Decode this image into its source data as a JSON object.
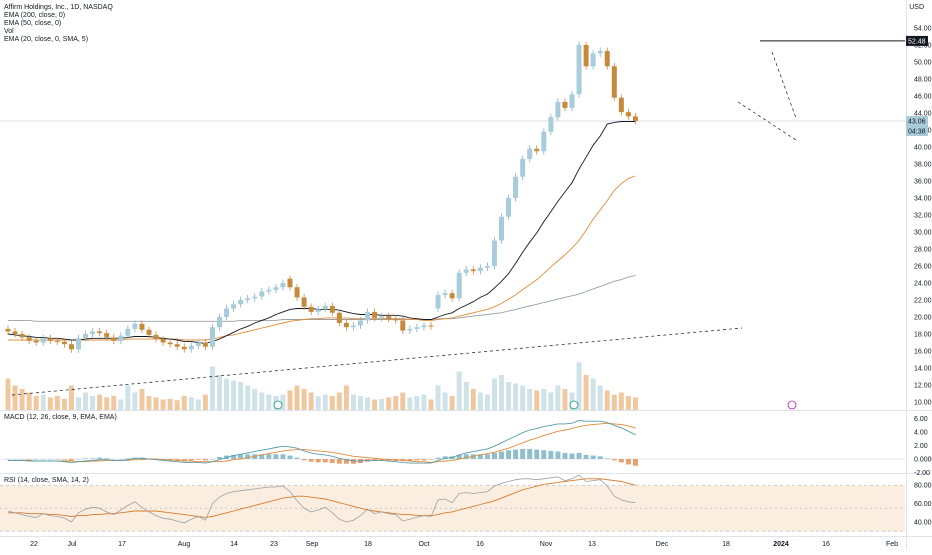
{
  "header": {
    "title": "Affirm Holdings, Inc., 1D, NASDAQ",
    "currency": "USD",
    "indicators": [
      "EMA (200, close, 0)",
      "EMA (50, close, 0)",
      "Vol",
      "EMA (20, close, 0, SMA, 5)"
    ]
  },
  "panes": {
    "macd_label": "MACD (12, 26, close, 9, EMA, EMA)",
    "rsi_label": "RSI (14, close, SMA, 14, 2)"
  },
  "chart_data": {
    "type": "candlestick",
    "x_labels": [
      "22",
      "Jul",
      "17",
      "Aug",
      "14",
      "23",
      "Sep",
      "18",
      "Oct",
      "16",
      "Nov",
      "13",
      "Dec",
      "18",
      "2024",
      "16",
      "Feb"
    ],
    "y_ticks": [
      "54.00",
      "52.00",
      "50.00",
      "48.00",
      "46.00",
      "44.00",
      "42.00",
      "40.00",
      "38.00",
      "36.00",
      "34.00",
      "32.00",
      "30.00",
      "28.00",
      "26.00",
      "24.00",
      "22.00",
      "20.00",
      "18.00",
      "16.00",
      "14.00",
      "12.00",
      "10.00"
    ],
    "price_labels": {
      "high": "52.48",
      "last": "43.06",
      "countdown": "04:38"
    },
    "macd_ticks": [
      "6.00",
      "4.00",
      "2.00",
      "0.0000",
      "-2.00"
    ],
    "rsi_ticks": [
      "80.00",
      "60.00",
      "40.00"
    ],
    "closes": [
      18.3,
      18.0,
      17.6,
      17.2,
      17.0,
      17.5,
      17.2,
      17.1,
      16.8,
      16.2,
      17.5,
      18.0,
      18.3,
      18.1,
      17.6,
      17.2,
      17.8,
      18.6,
      19.2,
      18.5,
      17.9,
      17.4,
      17.0,
      16.8,
      16.5,
      16.2,
      16.6,
      17.0,
      16.5,
      18.8,
      20.0,
      21.0,
      21.5,
      22.0,
      22.2,
      22.4,
      23.0,
      23.2,
      23.5,
      24.0,
      23.5,
      22.3,
      21.2,
      20.6,
      20.9,
      21.3,
      20.5,
      19.3,
      18.8,
      19.0,
      19.6,
      20.6,
      19.9,
      20.1,
      19.8,
      19.6,
      18.4,
      18.6,
      18.8,
      19.0,
      18.9,
      22.6,
      22.8,
      22.2,
      25.2,
      25.6,
      25.4,
      25.8,
      26.0,
      29.0,
      31.8,
      34.0,
      36.5,
      38.6,
      39.8,
      39.5,
      41.8,
      43.5,
      45.3,
      44.6,
      46.2,
      52.0,
      49.5,
      51.0,
      51.3,
      49.5,
      45.8,
      44.1,
      43.6,
      43.06
    ],
    "opens": [
      18.6,
      18.3,
      18.0,
      17.6,
      17.2,
      17.0,
      17.5,
      17.2,
      17.1,
      16.8,
      16.2,
      17.5,
      18.0,
      18.3,
      18.1,
      17.6,
      17.2,
      17.8,
      18.6,
      19.2,
      18.5,
      17.9,
      17.4,
      17.0,
      16.8,
      16.5,
      16.2,
      16.6,
      17.0,
      16.5,
      18.8,
      20.0,
      21.0,
      21.5,
      22.0,
      22.2,
      22.4,
      23.0,
      23.2,
      23.5,
      24.5,
      23.5,
      22.3,
      21.2,
      20.6,
      20.9,
      21.3,
      20.5,
      19.3,
      18.8,
      19.0,
      19.6,
      20.6,
      19.9,
      20.1,
      19.8,
      19.6,
      18.4,
      18.6,
      18.8,
      19.0,
      21.0,
      22.6,
      22.8,
      22.2,
      25.2,
      25.6,
      25.4,
      25.8,
      26.0,
      29.0,
      31.8,
      34.0,
      36.5,
      38.6,
      39.8,
      39.5,
      41.8,
      43.5,
      45.3,
      44.6,
      46.2,
      52.0,
      49.5,
      51.0,
      51.3,
      49.5,
      45.8,
      44.1,
      43.6
    ],
    "ema20": [
      18.0,
      17.9,
      17.8,
      17.7,
      17.6,
      17.6,
      17.5,
      17.5,
      17.4,
      17.3,
      17.3,
      17.4,
      17.5,
      17.5,
      17.5,
      17.5,
      17.5,
      17.6,
      17.7,
      17.7,
      17.7,
      17.6,
      17.5,
      17.4,
      17.3,
      17.1,
      17.1,
      17.0,
      16.9,
      17.1,
      17.4,
      17.8,
      18.2,
      18.6,
      18.9,
      19.3,
      19.6,
      19.9,
      20.3,
      20.6,
      20.9,
      21.0,
      21.0,
      21.0,
      20.9,
      20.9,
      20.9,
      20.8,
      20.6,
      20.4,
      20.3,
      20.3,
      20.3,
      20.2,
      20.2,
      20.2,
      20.1,
      19.9,
      19.8,
      19.7,
      19.7,
      20.0,
      20.3,
      20.5,
      21.0,
      21.4,
      21.8,
      22.3,
      22.7,
      23.4,
      24.2,
      25.1,
      26.3,
      27.6,
      28.8,
      29.9,
      31.2,
      32.4,
      33.6,
      34.7,
      35.8,
      37.4,
      38.8,
      40.2,
      41.3,
      42.7,
      42.9,
      43.0,
      43.0,
      43.0
    ],
    "ema50": [
      17.3,
      17.3,
      17.3,
      17.3,
      17.3,
      17.3,
      17.3,
      17.3,
      17.3,
      17.3,
      17.3,
      17.3,
      17.3,
      17.3,
      17.3,
      17.3,
      17.3,
      17.4,
      17.4,
      17.4,
      17.4,
      17.4,
      17.4,
      17.4,
      17.4,
      17.3,
      17.3,
      17.3,
      17.3,
      17.4,
      17.6,
      17.8,
      17.9,
      18.1,
      18.3,
      18.5,
      18.7,
      18.9,
      19.1,
      19.3,
      19.5,
      19.6,
      19.7,
      19.8,
      19.8,
      19.9,
      19.9,
      19.9,
      19.9,
      19.8,
      19.8,
      19.8,
      19.8,
      19.8,
      19.8,
      19.8,
      19.8,
      19.7,
      19.7,
      19.6,
      19.6,
      19.7,
      19.8,
      19.9,
      20.1,
      20.3,
      20.5,
      20.7,
      20.9,
      21.2,
      21.6,
      22.1,
      22.6,
      23.2,
      23.8,
      24.4,
      25.1,
      25.9,
      26.6,
      27.3,
      28.1,
      29.0,
      30.2,
      31.5,
      32.6,
      33.7,
      34.9,
      35.7,
      36.3,
      36.6
    ],
    "ema200": [
      19.6,
      19.6,
      19.6,
      19.6,
      19.5,
      19.5,
      19.5,
      19.5,
      19.5,
      19.5,
      19.5,
      19.5,
      19.5,
      19.5,
      19.5,
      19.5,
      19.5,
      19.5,
      19.5,
      19.5,
      19.5,
      19.5,
      19.5,
      19.5,
      19.5,
      19.5,
      19.5,
      19.5,
      19.5,
      19.5,
      19.5,
      19.5,
      19.5,
      19.6,
      19.6,
      19.6,
      19.6,
      19.6,
      19.6,
      19.7,
      19.7,
      19.7,
      19.7,
      19.7,
      19.7,
      19.7,
      19.7,
      19.7,
      19.7,
      19.7,
      19.7,
      19.7,
      19.7,
      19.7,
      19.7,
      19.7,
      19.7,
      19.7,
      19.7,
      19.7,
      19.7,
      19.8,
      19.8,
      19.8,
      19.9,
      20.0,
      20.1,
      20.2,
      20.3,
      20.4,
      20.5,
      20.7,
      20.9,
      21.1,
      21.3,
      21.5,
      21.7,
      21.9,
      22.1,
      22.3,
      22.5,
      22.7,
      23.0,
      23.3,
      23.6,
      23.9,
      24.2,
      24.4,
      24.7,
      24.9
    ],
    "volume": [
      0.45,
      0.35,
      0.3,
      0.25,
      0.2,
      0.22,
      0.18,
      0.2,
      0.16,
      0.35,
      0.18,
      0.25,
      0.2,
      0.22,
      0.18,
      0.2,
      0.15,
      0.35,
      0.25,
      0.3,
      0.2,
      0.18,
      0.15,
      0.16,
      0.14,
      0.2,
      0.18,
      0.15,
      0.22,
      0.62,
      0.5,
      0.45,
      0.42,
      0.4,
      0.35,
      0.3,
      0.25,
      0.22,
      0.2,
      0.22,
      0.28,
      0.35,
      0.3,
      0.25,
      0.2,
      0.22,
      0.2,
      0.25,
      0.35,
      0.22,
      0.2,
      0.18,
      0.15,
      0.16,
      0.18,
      0.2,
      0.25,
      0.18,
      0.2,
      0.22,
      0.15,
      0.35,
      0.25,
      0.2,
      0.55,
      0.4,
      0.3,
      0.25,
      0.22,
      0.45,
      0.5,
      0.4,
      0.38,
      0.35,
      0.3,
      0.28,
      0.3,
      0.25,
      0.35,
      0.3,
      0.25,
      0.68,
      0.5,
      0.45,
      0.35,
      0.28,
      0.22,
      0.25,
      0.2,
      0.18
    ],
    "macd_line": [
      -0.2,
      -0.2,
      -0.2,
      -0.3,
      -0.3,
      -0.3,
      -0.3,
      -0.3,
      -0.4,
      -0.5,
      -0.4,
      -0.3,
      -0.2,
      -0.1,
      -0.1,
      -0.2,
      -0.2,
      -0.1,
      0.1,
      0.1,
      0.0,
      -0.1,
      -0.2,
      -0.3,
      -0.4,
      -0.5,
      -0.5,
      -0.5,
      -0.6,
      -0.4,
      -0.1,
      0.2,
      0.5,
      0.7,
      0.9,
      1.1,
      1.3,
      1.5,
      1.7,
      1.9,
      1.8,
      1.6,
      1.2,
      0.9,
      0.7,
      0.6,
      0.4,
      0.1,
      -0.1,
      -0.3,
      -0.3,
      -0.2,
      -0.2,
      -0.2,
      -0.3,
      -0.4,
      -0.5,
      -0.6,
      -0.6,
      -0.6,
      -0.6,
      -0.2,
      0.1,
      0.2,
      0.6,
      0.9,
      1.1,
      1.3,
      1.5,
      1.9,
      2.4,
      2.9,
      3.4,
      3.9,
      4.3,
      4.5,
      4.8,
      5.0,
      5.2,
      5.2,
      5.3,
      5.7,
      5.6,
      5.6,
      5.6,
      5.4,
      5.0,
      4.6,
      4.1,
      3.6
    ],
    "macd_signal": [
      -0.2,
      -0.2,
      -0.2,
      -0.2,
      -0.3,
      -0.3,
      -0.3,
      -0.3,
      -0.3,
      -0.3,
      -0.4,
      -0.4,
      -0.3,
      -0.3,
      -0.2,
      -0.2,
      -0.2,
      -0.2,
      -0.1,
      -0.1,
      0.0,
      0.0,
      -0.1,
      -0.1,
      -0.2,
      -0.3,
      -0.3,
      -0.4,
      -0.4,
      -0.4,
      -0.4,
      -0.3,
      -0.1,
      0.0,
      0.2,
      0.4,
      0.6,
      0.8,
      1.0,
      1.2,
      1.3,
      1.4,
      1.4,
      1.3,
      1.2,
      1.1,
      1.0,
      0.8,
      0.6,
      0.4,
      0.3,
      0.2,
      0.1,
      0.0,
      -0.1,
      -0.1,
      -0.2,
      -0.3,
      -0.4,
      -0.4,
      -0.5,
      -0.4,
      -0.3,
      -0.2,
      0.0,
      0.2,
      0.4,
      0.6,
      0.8,
      1.0,
      1.3,
      1.6,
      2.0,
      2.4,
      2.8,
      3.1,
      3.5,
      3.8,
      4.1,
      4.3,
      4.5,
      4.8,
      5.0,
      5.1,
      5.2,
      5.3,
      5.2,
      5.1,
      4.9,
      4.6
    ],
    "rsi": [
      52,
      50,
      48,
      46,
      45,
      49,
      47,
      46,
      44,
      40,
      50,
      54,
      56,
      55,
      51,
      48,
      53,
      58,
      62,
      56,
      51,
      47,
      44,
      43,
      41,
      39,
      43,
      46,
      42,
      60,
      67,
      71,
      73,
      74,
      75,
      76,
      77,
      78,
      78,
      79,
      73,
      63,
      55,
      51,
      53,
      56,
      50,
      43,
      40,
      42,
      47,
      54,
      49,
      51,
      49,
      48,
      41,
      43,
      45,
      47,
      46,
      64,
      65,
      61,
      71,
      72,
      71,
      72,
      73,
      79,
      82,
      84,
      86,
      87,
      87,
      86,
      87,
      88,
      89,
      85,
      87,
      91,
      84,
      85,
      86,
      79,
      68,
      64,
      62,
      61
    ],
    "rsi_ma": [
      50,
      50,
      50,
      49,
      49,
      49,
      48,
      48,
      47,
      46,
      47,
      47,
      48,
      48,
      49,
      49,
      50,
      51,
      52,
      52,
      52,
      52,
      51,
      50,
      49,
      48,
      47,
      46,
      45,
      46,
      48,
      50,
      52,
      54,
      56,
      58,
      60,
      62,
      64,
      66,
      67,
      68,
      68,
      67,
      66,
      65,
      63,
      61,
      59,
      57,
      55,
      53,
      52,
      51,
      50,
      49,
      48,
      48,
      47,
      47,
      47,
      48,
      50,
      51,
      53,
      55,
      57,
      59,
      61,
      63,
      66,
      69,
      72,
      75,
      77,
      79,
      81,
      82,
      83,
      84,
      85,
      86,
      87,
      87,
      87,
      86,
      85,
      84,
      82,
      80
    ],
    "colors": {
      "up": "#a8ccd9",
      "down": "#c68a3d",
      "ema20": "#131722",
      "ema50": "#e08c3b",
      "ema200": "#9aa0a6",
      "vol_up": "#cfe2e8",
      "vol_down": "#f0c8a0",
      "rsi_band": "#fbeee0",
      "rsi_ma": "#d97a2b"
    }
  }
}
